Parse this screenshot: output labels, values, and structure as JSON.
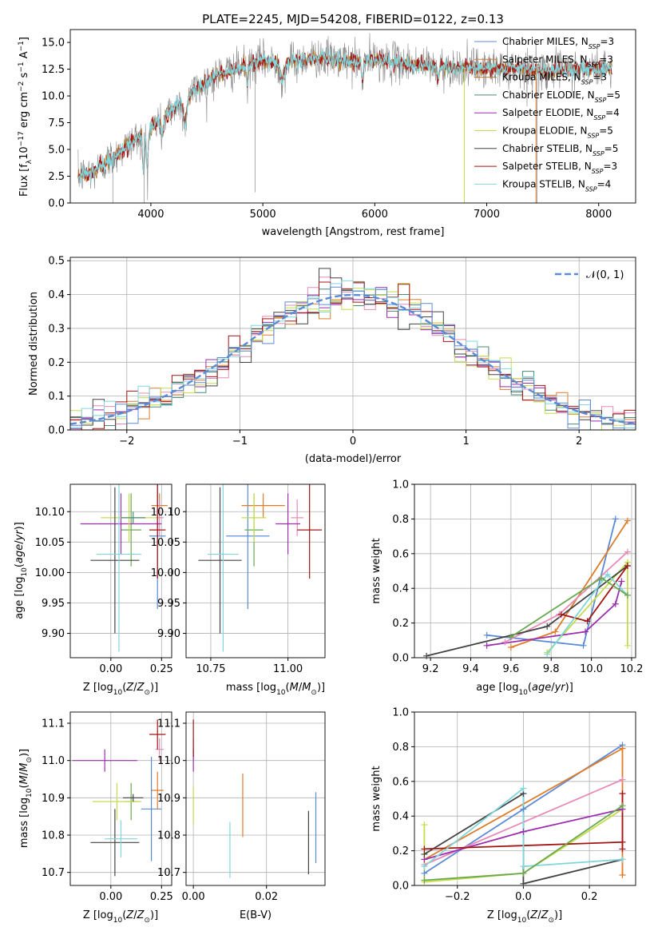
{
  "title": "PLATE=2245, MJD=54208, FIBERID=0122, z=0.13",
  "colors": {
    "c1": "#5b8bd6",
    "c2": "#e07b2a",
    "c3": "#b07a36",
    "c4": "#4a8a78",
    "c5": "#9b2fae",
    "c6": "#c5dc4b",
    "c7": "#444444",
    "c8": "#a51515",
    "c9": "#7fd6dc",
    "pink": "#e88ab8",
    "green": "#6aa84f",
    "gray": "#8a8a8a"
  },
  "chart_data": [
    {
      "id": "spectrum",
      "type": "line",
      "title": "PLATE=2245, MJD=54208, FIBERID=0122, z=0.13",
      "xlabel": "wavelength [Angstrom, rest frame]",
      "ylabel": "Flux [f_λ 10^-17 erg cm^-2 s^-1 A^-1]",
      "xlim": [
        3280,
        8330
      ],
      "ylim": [
        0,
        16.2
      ],
      "xticks": [
        4000,
        5000,
        6000,
        7000,
        8000
      ],
      "yticks": [
        0.0,
        2.5,
        5.0,
        7.5,
        10.0,
        12.5,
        15.0
      ],
      "grid": false,
      "legend_position": "upper right",
      "continuum": {
        "x": [
          3350,
          3500,
          3700,
          3900,
          4000,
          4200,
          4400,
          4600,
          4800,
          5000,
          5200,
          5500,
          5800,
          6000,
          6300,
          6600,
          6900,
          7200,
          7500,
          7800,
          8100
        ],
        "y": [
          2.5,
          3.0,
          4.6,
          6.3,
          7.0,
          8.8,
          10.6,
          12.0,
          12.6,
          13.3,
          13.1,
          13.6,
          13.2,
          13.4,
          13.0,
          12.7,
          12.6,
          12.6,
          12.4,
          12.5,
          12.6
        ]
      },
      "series": [
        {
          "name": "Chabrier MILES, N_SSP=3",
          "label_main": "Chabrier MILES, N",
          "label_sub": "SSP",
          "label_tail": "=3",
          "color_key": "c1"
        },
        {
          "name": "Salpeter MILES, N_SSP=3",
          "label_main": "Salpeter MILES, N",
          "label_sub": "SSP",
          "label_tail": "=3",
          "color_key": "c2"
        },
        {
          "name": "Kroupa MILES, N_SSP=3",
          "label_main": "Kroupa MILES, N",
          "label_sub": "SSP",
          "label_tail": "=3",
          "color_key": "c3"
        },
        {
          "name": "Chabrier ELODIE, N_SSP=5",
          "label_main": "Chabrier ELODIE, N",
          "label_sub": "SSP",
          "label_tail": "=5",
          "color_key": "c4"
        },
        {
          "name": "Salpeter ELODIE, N_SSP=4",
          "label_main": "Salpeter ELODIE, N",
          "label_sub": "SSP",
          "label_tail": "=4",
          "color_key": "c5"
        },
        {
          "name": "Kroupa ELODIE, N_SSP=5",
          "label_main": "Kroupa ELODIE, N",
          "label_sub": "SSP",
          "label_tail": "=5",
          "color_key": "c6"
        },
        {
          "name": "Chabrier STELIB, N_SSP=5",
          "label_main": "Chabrier STELIB, N",
          "label_sub": "SSP",
          "label_tail": "=5",
          "color_key": "c7"
        },
        {
          "name": "Salpeter STELIB, N_SSP=3",
          "label_main": "Salpeter STELIB, N",
          "label_sub": "SSP",
          "label_tail": "=3",
          "color_key": "c8"
        },
        {
          "name": "Kroupa STELIB, N_SSP=4",
          "label_main": "Kroupa STELIB, N",
          "label_sub": "SSP",
          "label_tail": "=4",
          "color_key": "c9"
        }
      ]
    },
    {
      "id": "residuals",
      "type": "line",
      "xlabel": "(data-model)/error",
      "ylabel": "Normed distribution",
      "xlim": [
        -2.5,
        2.5
      ],
      "ylim": [
        0,
        0.51
      ],
      "xticks": [
        -2,
        -1,
        0,
        1,
        2
      ],
      "yticks": [
        0.0,
        0.1,
        0.2,
        0.3,
        0.4,
        0.5
      ],
      "grid": true,
      "legend_position": "upper right",
      "gaussian_label": "𝒩(0, 1)",
      "bin_width": 0.1
    },
    {
      "id": "age_vs_Z",
      "type": "scatter",
      "xlabel": "Z [log10(Z/Z☉)]",
      "ylabel": "age  [log10(age/yr)]",
      "xlim": [
        -0.2,
        0.3
      ],
      "ylim": [
        9.86,
        10.145
      ],
      "xticks": [
        0.0,
        0.25
      ],
      "yticks": [
        9.9,
        9.95,
        10.0,
        10.05,
        10.1
      ],
      "grid": true,
      "points": [
        {
          "x": 0.23,
          "y": 10.06,
          "xerr": 0.04,
          "yerr": 0.12,
          "color_key": "c1"
        },
        {
          "x": 0.24,
          "y": 10.11,
          "xerr": 0.04,
          "yerr": 0.02,
          "color_key": "c2"
        },
        {
          "x": 0.24,
          "y": 10.09,
          "xerr": 0.02,
          "yerr": 0.03,
          "color_key": "pink"
        },
        {
          "x": 0.1,
          "y": 10.07,
          "xerr": 0.05,
          "yerr": 0.06,
          "color_key": "green"
        },
        {
          "x": 0.05,
          "y": 10.08,
          "xerr": 0.2,
          "yerr": 0.05,
          "color_key": "c5"
        },
        {
          "x": 0.09,
          "y": 10.09,
          "xerr": 0.14,
          "yerr": 0.04,
          "color_key": "c6"
        },
        {
          "x": 0.02,
          "y": 10.02,
          "xerr": 0.12,
          "yerr": 0.12,
          "color_key": "c7"
        },
        {
          "x": 0.23,
          "y": 10.07,
          "xerr": 0.04,
          "yerr": 0.08,
          "color_key": "c8"
        },
        {
          "x": 0.04,
          "y": 10.03,
          "xerr": 0.11,
          "yerr": 0.16,
          "color_key": "c9"
        },
        {
          "x": 0.11,
          "y": 10.09,
          "xerr": 0.06,
          "yerr": 0.01,
          "color_key": "c4"
        }
      ]
    },
    {
      "id": "age_vs_mass",
      "type": "scatter",
      "xlabel": "mass [log10(M/M☉)]",
      "ylabel": "",
      "xlim": [
        10.67,
        11.12
      ],
      "ylim": [
        9.86,
        10.145
      ],
      "xticks": [
        10.75,
        11.0
      ],
      "yticks": [
        9.9,
        9.95,
        10.0,
        10.05,
        10.1
      ],
      "grid": true,
      "points": [
        {
          "x": 10.87,
          "y": 10.06,
          "xerr": 0.07,
          "yerr": 0.12,
          "color_key": "c1"
        },
        {
          "x": 10.92,
          "y": 10.11,
          "xerr": 0.07,
          "yerr": 0.02,
          "color_key": "c2"
        },
        {
          "x": 11.03,
          "y": 10.09,
          "xerr": 0.02,
          "yerr": 0.03,
          "color_key": "pink"
        },
        {
          "x": 10.89,
          "y": 10.07,
          "xerr": 0.03,
          "yerr": 0.06,
          "color_key": "green"
        },
        {
          "x": 11.0,
          "y": 10.08,
          "xerr": 0.04,
          "yerr": 0.05,
          "color_key": "c5"
        },
        {
          "x": 10.89,
          "y": 10.09,
          "xerr": 0.04,
          "yerr": 0.04,
          "color_key": "c6"
        },
        {
          "x": 10.78,
          "y": 10.02,
          "xerr": 0.07,
          "yerr": 0.12,
          "color_key": "c7"
        },
        {
          "x": 11.07,
          "y": 10.07,
          "xerr": 0.04,
          "yerr": 0.08,
          "color_key": "c8"
        },
        {
          "x": 10.79,
          "y": 10.03,
          "xerr": 0.05,
          "yerr": 0.16,
          "color_key": "c9"
        }
      ]
    },
    {
      "id": "massweight_vs_age",
      "type": "line",
      "xlabel": "age  [log10(age/yr)]",
      "ylabel": "mass weight",
      "xlim": [
        9.12,
        10.22
      ],
      "ylim": [
        0,
        1.0
      ],
      "xticks": [
        9.2,
        9.4,
        9.6,
        9.8,
        10.0,
        10.2
      ],
      "yticks": [
        0.0,
        0.2,
        0.4,
        0.6,
        0.8,
        1.0
      ],
      "grid": true,
      "series": [
        {
          "color_key": "c1",
          "x": [
            9.48,
            9.96,
            10.12
          ],
          "y": [
            0.13,
            0.07,
            0.8
          ]
        },
        {
          "color_key": "c2",
          "x": [
            9.6,
            9.82,
            10.18
          ],
          "y": [
            0.06,
            0.15,
            0.79
          ]
        },
        {
          "color_key": "pink",
          "x": [
            9.57,
            9.84,
            10.18
          ],
          "y": [
            0.09,
            0.25,
            0.61
          ]
        },
        {
          "color_key": "c6",
          "x": [
            9.78,
            10.18,
            10.18
          ],
          "y": [
            0.03,
            0.55,
            0.07
          ]
        },
        {
          "color_key": "c5",
          "x": [
            9.48,
            9.97,
            10.12,
            10.15
          ],
          "y": [
            0.07,
            0.15,
            0.31,
            0.44
          ]
        },
        {
          "color_key": "c7",
          "x": [
            9.18,
            9.78,
            10.18
          ],
          "y": [
            0.01,
            0.18,
            0.53
          ]
        },
        {
          "color_key": "c8",
          "x": [
            9.85,
            9.98,
            10.18
          ],
          "y": [
            0.25,
            0.21,
            0.53
          ]
        },
        {
          "color_key": "c9",
          "x": [
            9.78,
            10.08,
            10.18
          ],
          "y": [
            0.02,
            0.48,
            0.36
          ]
        },
        {
          "color_key": "green",
          "x": [
            9.6,
            10.05,
            10.18
          ],
          "y": [
            0.12,
            0.46,
            0.36
          ]
        }
      ]
    },
    {
      "id": "mass_vs_Z",
      "type": "scatter",
      "xlabel": "Z [log10(Z/Z☉)]",
      "ylabel": "mass [log10(M/M☉)]",
      "xlim": [
        -0.2,
        0.3
      ],
      "ylim": [
        10.665,
        11.13
      ],
      "xticks": [
        0.0,
        0.25
      ],
      "yticks": [
        10.7,
        10.8,
        10.9,
        11.0,
        11.1
      ],
      "grid": true,
      "points": [
        {
          "x": 0.2,
          "y": 10.87,
          "xerr": 0.05,
          "yerr": 0.14,
          "color_key": "c1"
        },
        {
          "x": 0.23,
          "y": 10.92,
          "xerr": 0.03,
          "yerr": 0.05,
          "color_key": "c2"
        },
        {
          "x": 0.24,
          "y": 11.03,
          "xerr": 0.02,
          "yerr": 0.03,
          "color_key": "pink"
        },
        {
          "x": 0.1,
          "y": 10.89,
          "xerr": 0.03,
          "yerr": 0.05,
          "color_key": "green"
        },
        {
          "x": -0.03,
          "y": 11.0,
          "xerr": 0.16,
          "yerr": 0.03,
          "color_key": "c5"
        },
        {
          "x": 0.03,
          "y": 10.89,
          "xerr": 0.12,
          "yerr": 0.05,
          "color_key": "c6"
        },
        {
          "x": 0.02,
          "y": 10.78,
          "xerr": 0.12,
          "yerr": 0.09,
          "color_key": "c7"
        },
        {
          "x": 0.23,
          "y": 11.07,
          "xerr": 0.04,
          "yerr": 0.04,
          "color_key": "c8"
        },
        {
          "x": 0.05,
          "y": 10.79,
          "xerr": 0.08,
          "yerr": 0.05,
          "color_key": "c9"
        },
        {
          "x": 0.11,
          "y": 10.9,
          "xerr": 0.05,
          "yerr": 0.01,
          "color_key": "c7"
        }
      ]
    },
    {
      "id": "mass_vs_EBV",
      "type": "scatter",
      "xlabel": "E(B-V)",
      "ylabel": "",
      "xlim": [
        -0.002,
        0.036
      ],
      "ylim": [
        10.665,
        11.13
      ],
      "xticks": [
        0.0,
        0.02
      ],
      "yticks": [
        10.7,
        10.8,
        10.9,
        11.0,
        11.1
      ],
      "grid": true,
      "points": [
        {
          "x": 0.0335,
          "y": 10.82,
          "yerr": 0.095,
          "color_key": "c1"
        },
        {
          "x": 0.0135,
          "y": 10.88,
          "yerr": 0.085,
          "color_key": "c2"
        },
        {
          "x": 0.0,
          "y": 11.03,
          "yerr": 0.03,
          "color_key": "pink"
        },
        {
          "x": 0.0,
          "y": 10.88,
          "yerr": 0.05,
          "color_key": "c6"
        },
        {
          "x": 0.0,
          "y": 11.0,
          "yerr": 0.03,
          "color_key": "c5"
        },
        {
          "x": 0.0,
          "y": 11.06,
          "yerr": 0.05,
          "color_key": "c8"
        },
        {
          "x": 0.0315,
          "y": 10.78,
          "yerr": 0.085,
          "color_key": "c7"
        },
        {
          "x": 0.01,
          "y": 10.76,
          "yerr": 0.075,
          "color_key": "c9"
        }
      ]
    },
    {
      "id": "massweight_vs_Z",
      "type": "line",
      "xlabel": "Z [log10(Z/Z☉)]",
      "ylabel": "mass weight",
      "xlim": [
        -0.33,
        0.34
      ],
      "ylim": [
        0,
        1.0
      ],
      "xticks": [
        -0.2,
        0.0,
        0.2
      ],
      "yticks": [
        0.0,
        0.2,
        0.4,
        0.6,
        0.8,
        1.0
      ],
      "grid": true,
      "series": [
        {
          "color_key": "c1",
          "x": [
            -0.3,
            0.0,
            0.3
          ],
          "y": [
            0.07,
            0.44,
            0.81
          ]
        },
        {
          "color_key": "c2",
          "x": [
            -0.3,
            0.3,
            0.3,
            0.3
          ],
          "y": [
            0.15,
            0.79,
            0.06,
            0.79
          ]
        },
        {
          "color_key": "pink",
          "x": [
            -0.3,
            0.3
          ],
          "y": [
            0.12,
            0.61
          ]
        },
        {
          "color_key": "c6",
          "x": [
            -0.3,
            -0.3,
            0.0,
            0.3
          ],
          "y": [
            0.35,
            0.02,
            0.07,
            0.44
          ]
        },
        {
          "color_key": "c5",
          "x": [
            -0.3,
            0.0,
            0.3
          ],
          "y": [
            0.15,
            0.31,
            0.44
          ]
        },
        {
          "color_key": "c7",
          "x": [
            -0.3,
            0.0,
            0.0,
            0.3
          ],
          "y": [
            0.18,
            0.53,
            0.01,
            0.15
          ]
        },
        {
          "color_key": "c8",
          "x": [
            -0.3,
            0.3,
            0.3,
            0.3
          ],
          "y": [
            0.21,
            0.25,
            0.53,
            0.21
          ]
        },
        {
          "color_key": "c9",
          "x": [
            -0.3,
            0.0,
            0.0,
            0.3
          ],
          "y": [
            0.11,
            0.56,
            0.11,
            0.15
          ]
        },
        {
          "color_key": "green",
          "x": [
            -0.3,
            0.0,
            0.3
          ],
          "y": [
            0.03,
            0.07,
            0.46
          ]
        }
      ]
    }
  ]
}
